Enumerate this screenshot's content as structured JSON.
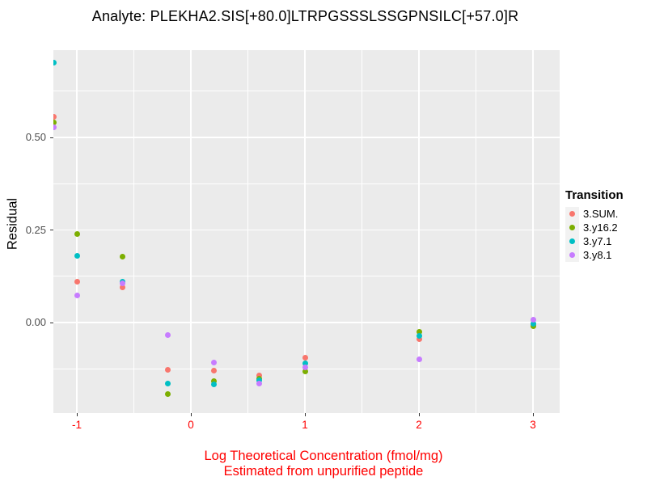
{
  "colors": {
    "background": "#FFFFFF",
    "panel_bg": "#EBEBEB",
    "grid": "#FFFFFF",
    "title_text": "#000000",
    "y_axis_text": "#4D4D4D",
    "x_axis_text": "#FF0000",
    "x_axis_title_text": "#FF0000",
    "y_axis_title_text": "#000000",
    "legend_text": "#000000",
    "legend_key_bg": "#F2F2F2",
    "tick_mark": "#333333"
  },
  "chart_data": {
    "type": "scatter",
    "title": "Analyte: PLEKHA2.SIS[+80.0]LTRPGSSSLSSGPNSILC[+57.0]R",
    "ylabel": "Residual",
    "xlabel_line1": "Log Theoretical Concentration (fmol/mg)",
    "xlabel_line2": "Estimated from unpurified peptide",
    "xlim": [
      -1.2057,
      3.234
    ],
    "ylim": [
      -0.2445,
      0.7358
    ],
    "x_ticks": [
      {
        "value": -1,
        "label": "-1"
      },
      {
        "value": 0,
        "label": "0"
      },
      {
        "value": 1,
        "label": "1"
      },
      {
        "value": 2,
        "label": "2"
      },
      {
        "value": 3,
        "label": "3"
      }
    ],
    "y_ticks": [
      {
        "value": 0.0,
        "label": "0.00"
      },
      {
        "value": 0.25,
        "label": "0.25"
      },
      {
        "value": 0.5,
        "label": "0.50"
      }
    ],
    "x_minor_ticks": [
      -0.5,
      0.5,
      1.5,
      2.5
    ],
    "y_minor_ticks": [
      -0.125,
      0.125,
      0.375,
      0.625
    ],
    "grid": "on",
    "legend": {
      "title": "Transition",
      "position": "right",
      "entries": [
        {
          "label": "3.SUM.",
          "color": "#F8766D"
        },
        {
          "label": "3.y16.2",
          "color": "#7CAE00"
        },
        {
          "label": "3.y7.1",
          "color": "#00BFC4"
        },
        {
          "label": "3.y8.1",
          "color": "#C77CFF"
        }
      ]
    },
    "series": [
      {
        "name": "3.SUM.",
        "color": "#F8766D",
        "points": [
          [
            -1.2,
            0.555
          ],
          [
            -1,
            0.11
          ],
          [
            -0.6,
            0.096
          ],
          [
            -0.2,
            -0.127
          ],
          [
            0.2,
            -0.129
          ],
          [
            0.6,
            -0.142
          ],
          [
            1,
            -0.096
          ],
          [
            2,
            -0.044
          ],
          [
            3,
            -0.005
          ]
        ]
      },
      {
        "name": "3.y16.2",
        "color": "#7CAE00",
        "points": [
          [
            -1.2,
            0.54
          ],
          [
            -1,
            0.24
          ],
          [
            -0.6,
            0.179
          ],
          [
            -0.2,
            -0.194
          ],
          [
            0.2,
            -0.159
          ],
          [
            0.6,
            -0.151
          ],
          [
            1,
            -0.131
          ],
          [
            2,
            -0.024
          ],
          [
            3,
            -0.009
          ]
        ]
      },
      {
        "name": "3.y7.1",
        "color": "#00BFC4",
        "points": [
          [
            -1.2,
            0.703
          ],
          [
            -1,
            0.181
          ],
          [
            -0.6,
            0.111
          ],
          [
            -0.2,
            -0.164
          ],
          [
            0.2,
            -0.166
          ],
          [
            0.6,
            -0.155
          ],
          [
            1,
            -0.111
          ],
          [
            2,
            -0.037
          ],
          [
            3,
            -0.004
          ]
        ]
      },
      {
        "name": "3.y8.1",
        "color": "#C77CFF",
        "points": [
          [
            -1.2,
            0.528
          ],
          [
            -1,
            0.074
          ],
          [
            -0.6,
            0.105
          ],
          [
            -0.2,
            -0.033
          ],
          [
            0.2,
            -0.109
          ],
          [
            0.6,
            -0.164
          ],
          [
            1,
            -0.122
          ],
          [
            2,
            -0.1
          ],
          [
            3,
            0.007
          ]
        ]
      }
    ]
  }
}
